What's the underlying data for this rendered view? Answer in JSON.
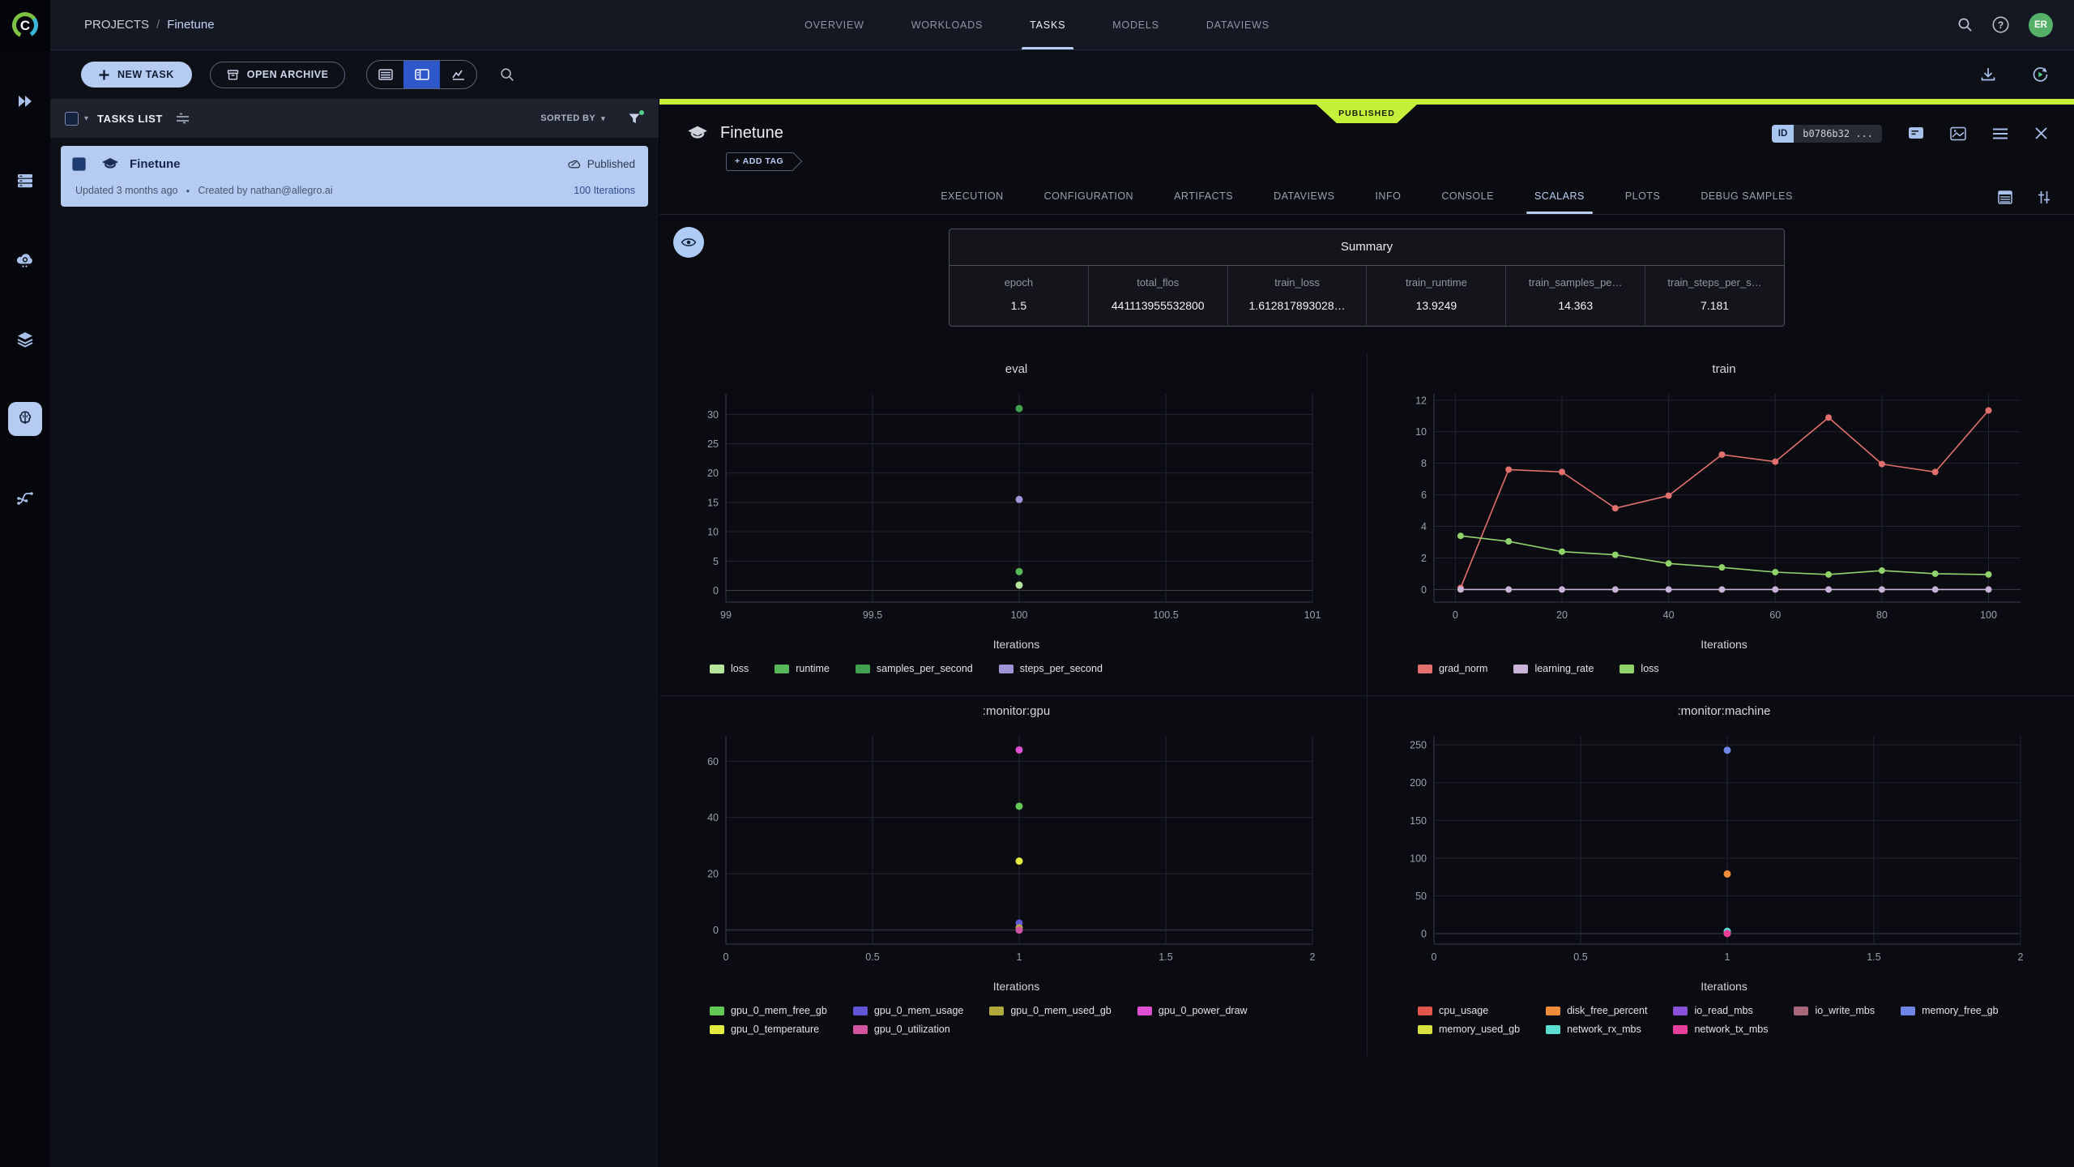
{
  "header": {
    "logo_letter": "C",
    "breadcrumb": {
      "root": "PROJECTS",
      "separator": "/",
      "current": "Finetune"
    },
    "nav": [
      {
        "label": "OVERVIEW",
        "active": false
      },
      {
        "label": "WORKLOADS",
        "active": false
      },
      {
        "label": "TASKS",
        "active": true
      },
      {
        "label": "MODELS",
        "active": false
      },
      {
        "label": "DATAVIEWS",
        "active": false
      }
    ],
    "avatar_initials": "ER"
  },
  "toolbar": {
    "new_task_label": "NEW TASK",
    "open_archive_label": "OPEN ARCHIVE"
  },
  "tasks_panel": {
    "title": "TASKS LIST",
    "sorted_by_label": "SORTED BY",
    "task": {
      "name": "Finetune",
      "status": "Published",
      "updated": "Updated 3 months ago",
      "creator": "Created by nathan@allegro.ai",
      "iterations": "100 Iterations"
    }
  },
  "detail": {
    "ribbon": "PUBLISHED",
    "title": "Finetune",
    "add_tag_label": "+ ADD TAG",
    "id_chip": {
      "label": "ID",
      "value": "b0786b32 ..."
    },
    "tabs": [
      {
        "label": "EXECUTION",
        "active": false
      },
      {
        "label": "CONFIGURATION",
        "active": false
      },
      {
        "label": "ARTIFACTS",
        "active": false
      },
      {
        "label": "DATAVIEWS",
        "active": false
      },
      {
        "label": "INFO",
        "active": false
      },
      {
        "label": "CONSOLE",
        "active": false
      },
      {
        "label": "SCALARS",
        "active": true
      },
      {
        "label": "PLOTS",
        "active": false
      },
      {
        "label": "DEBUG SAMPLES",
        "active": false
      }
    ],
    "summary": {
      "title": "Summary",
      "metrics": [
        {
          "label": "epoch",
          "value": "1.5"
        },
        {
          "label": "total_flos",
          "value": "441113955532800"
        },
        {
          "label": "train_loss",
          "value": "1.612817893028…"
        },
        {
          "label": "train_runtime",
          "value": "13.9249"
        },
        {
          "label": "train_samples_pe…",
          "value": "14.363"
        },
        {
          "label": "train_steps_per_s…",
          "value": "7.181"
        }
      ]
    }
  },
  "chart_data": [
    {
      "type": "scatter",
      "title": "eval",
      "xlabel": "Iterations",
      "x": [
        100
      ],
      "xlim": [
        99,
        101
      ],
      "ylim": [
        -2,
        33.5
      ],
      "xticks": [
        99,
        99.5,
        100,
        100.5,
        101
      ],
      "yticks": [
        0,
        5,
        10,
        15,
        20,
        25,
        30
      ],
      "legend_columns": 4,
      "grid": true,
      "legend_position": "bottom-left",
      "series": [
        {
          "name": "loss",
          "color": "#b7e59b",
          "values": [
            0.9
          ]
        },
        {
          "name": "runtime",
          "color": "#57b85c",
          "values": [
            3.2
          ]
        },
        {
          "name": "samples_per_second",
          "color": "#41a050",
          "values": [
            31
          ]
        },
        {
          "name": "steps_per_second",
          "color": "#9d95d6",
          "values": [
            15.5
          ]
        }
      ]
    },
    {
      "type": "line",
      "title": "train",
      "xlabel": "Iterations",
      "x": [
        1,
        10,
        20,
        30,
        40,
        50,
        60,
        70,
        80,
        90,
        100
      ],
      "xlim": [
        -4,
        106
      ],
      "ylim": [
        -0.8,
        12.4
      ],
      "xticks": [
        0,
        20,
        40,
        60,
        80,
        100
      ],
      "yticks": [
        0,
        2,
        4,
        6,
        8,
        10,
        12
      ],
      "legend_columns": 3,
      "grid": true,
      "legend_position": "bottom-left",
      "series": [
        {
          "name": "grad_norm",
          "color": "#e2706e",
          "values": [
            0.1,
            7.6,
            7.45,
            5.15,
            5.95,
            8.55,
            8.1,
            10.9,
            7.95,
            7.45,
            11.35
          ]
        },
        {
          "name": "learning_rate",
          "color": "#c9b3d8",
          "values": [
            0,
            0,
            0,
            0,
            0,
            0,
            0,
            0,
            0,
            0,
            0
          ]
        },
        {
          "name": "loss",
          "color": "#8fd36a",
          "values": [
            3.4,
            3.05,
            2.4,
            2.2,
            1.65,
            1.4,
            1.1,
            0.95,
            1.2,
            1.0,
            0.95
          ]
        }
      ]
    },
    {
      "type": "scatter",
      "title": ":monitor:gpu",
      "xlabel": "Iterations",
      "x": [
        1
      ],
      "xlim": [
        0,
        2
      ],
      "ylim": [
        -5,
        69
      ],
      "xticks": [
        0,
        0.5,
        1,
        1.5,
        2
      ],
      "yticks": [
        0,
        20,
        40,
        60
      ],
      "legend_columns": 4,
      "grid": true,
      "legend_position": "bottom-left",
      "series": [
        {
          "name": "gpu_0_mem_free_gb",
          "color": "#63c955",
          "values": [
            44
          ]
        },
        {
          "name": "gpu_0_mem_usage",
          "color": "#6156d5",
          "values": [
            2.5
          ]
        },
        {
          "name": "gpu_0_mem_used_gb",
          "color": "#b0a93c",
          "values": [
            0.8
          ]
        },
        {
          "name": "gpu_0_power_draw",
          "color": "#de4fd1",
          "values": [
            64
          ]
        },
        {
          "name": "gpu_0_temperature",
          "color": "#e3eb3e",
          "values": [
            24.5
          ]
        },
        {
          "name": "gpu_0_utilization",
          "color": "#d0549f",
          "values": [
            0
          ]
        }
      ]
    },
    {
      "type": "scatter",
      "title": ":monitor:machine",
      "xlabel": "Iterations",
      "x": [
        1
      ],
      "xlim": [
        0,
        2
      ],
      "ylim": [
        -14,
        262
      ],
      "xticks": [
        0,
        0.5,
        1,
        1.5,
        2
      ],
      "yticks": [
        0,
        50,
        100,
        150,
        200,
        250
      ],
      "legend_columns": 5,
      "grid": true,
      "legend_position": "bottom-left",
      "series": [
        {
          "name": "cpu_usage",
          "color": "#e2574c",
          "values": [
            1.5
          ]
        },
        {
          "name": "disk_free_percent",
          "color": "#ef8c3a",
          "values": [
            79
          ]
        },
        {
          "name": "io_read_mbs",
          "color": "#8a52d7",
          "values": [
            0.3
          ]
        },
        {
          "name": "io_write_mbs",
          "color": "#a8677b",
          "values": [
            0.2
          ]
        },
        {
          "name": "memory_free_gb",
          "color": "#6f86e8",
          "values": [
            243
          ]
        },
        {
          "name": "memory_used_gb",
          "color": "#d8e23f",
          "values": [
            1
          ]
        },
        {
          "name": "network_rx_mbs",
          "color": "#59ded1",
          "values": [
            3
          ]
        },
        {
          "name": "network_tx_mbs",
          "color": "#e83e9c",
          "values": [
            0.1
          ]
        }
      ]
    }
  ]
}
